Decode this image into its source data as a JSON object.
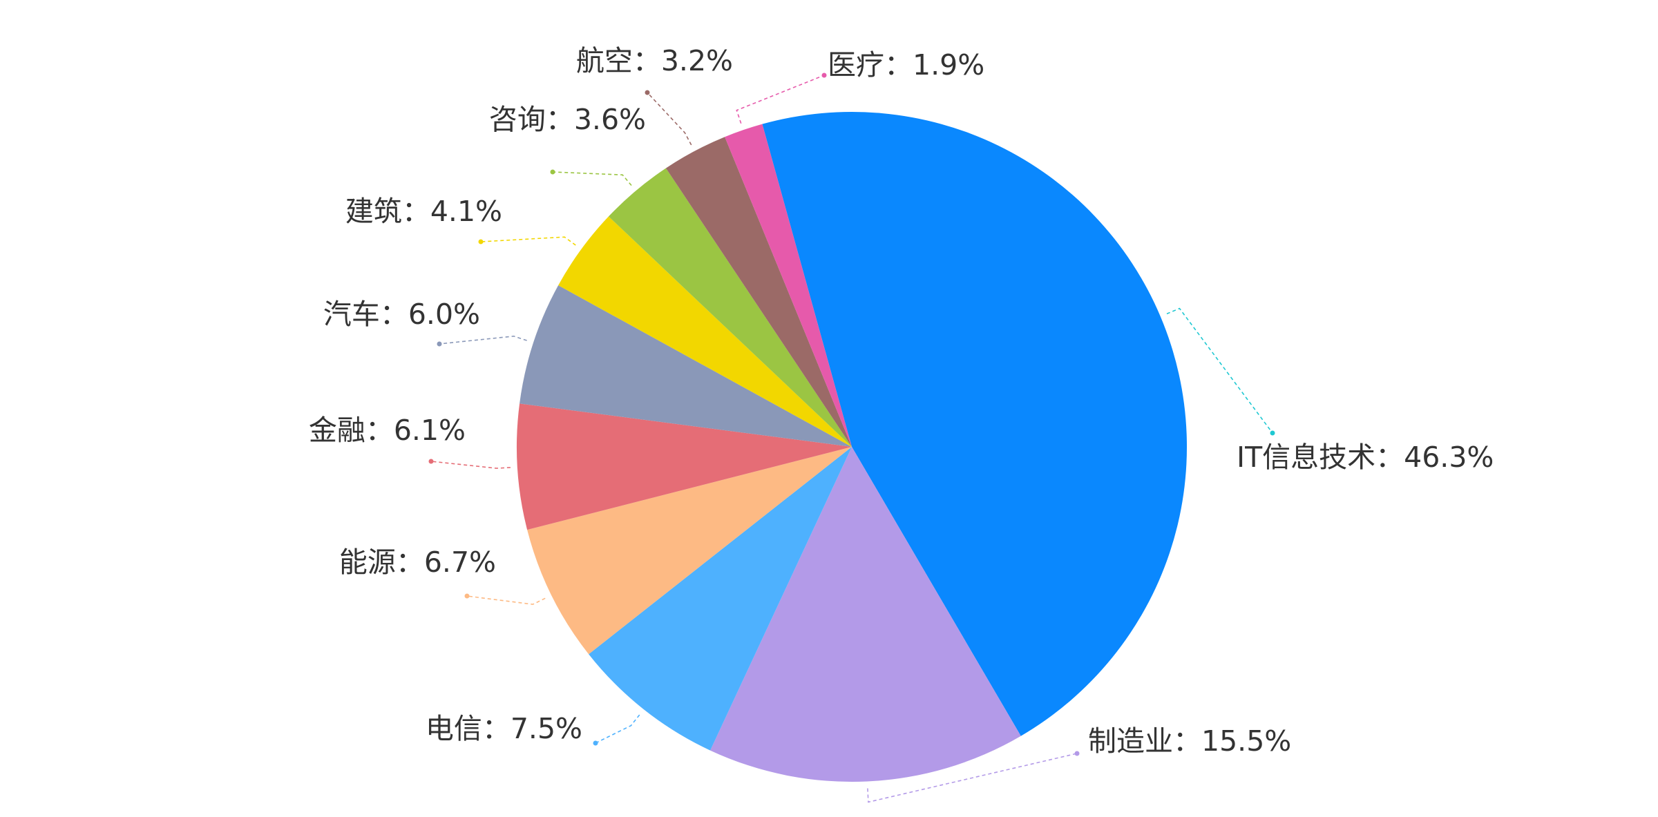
{
  "chart_data": {
    "type": "pie",
    "title": "",
    "start_angle_deg": -15.5,
    "direction": "clockwise",
    "label_format": "{name}：{value}%",
    "slices": [
      {
        "name": "IT信息技术",
        "value": 46.3,
        "color": "#0a88fe"
      },
      {
        "name": "制造业",
        "value": 15.5,
        "color": "#b39ae8"
      },
      {
        "name": "电信",
        "value": 7.5,
        "color": "#4eb1fe"
      },
      {
        "name": "能源",
        "value": 6.7,
        "color": "#fdba84"
      },
      {
        "name": "金融",
        "value": 6.1,
        "color": "#e56d76"
      },
      {
        "name": "汽车",
        "value": 6.0,
        "color": "#8a98b8"
      },
      {
        "name": "建筑",
        "value": 4.1,
        "color": "#f2d700"
      },
      {
        "name": "咨询",
        "value": 3.6,
        "color": "#9bc543"
      },
      {
        "name": "航空",
        "value": 3.2,
        "color": "#9b6a67"
      },
      {
        "name": "医疗",
        "value": 1.9,
        "color": "#e65aab"
      }
    ],
    "leader_colors": [
      "#1fc8d2",
      "#b39ae8",
      "#4eb1fe",
      "#fdba84",
      "#e56d76",
      "#8a98b8",
      "#f2d700",
      "#9bc543",
      "#9b6a67",
      "#e65aab"
    ]
  }
}
